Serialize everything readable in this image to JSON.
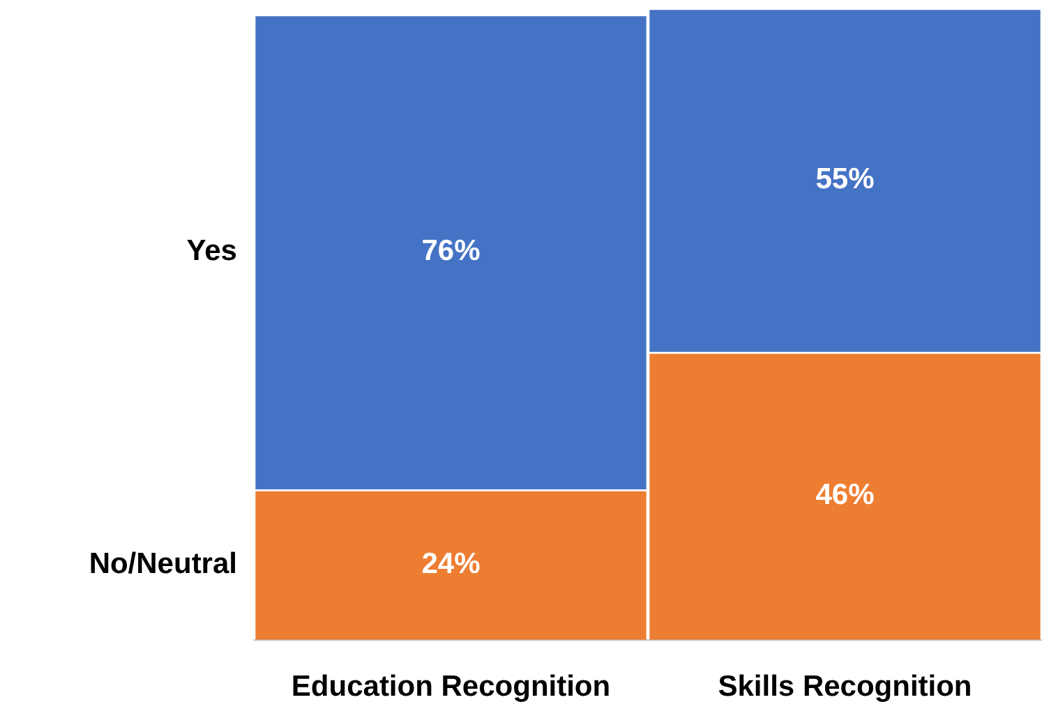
{
  "chart_data": {
    "type": "bar",
    "stacked": true,
    "grid": false,
    "legend": false,
    "categories": [
      "Education Recognition",
      "Skills Recognition"
    ],
    "series": [
      {
        "name": "No/Neutral",
        "color": "#ed7d31",
        "values": [
          24,
          46
        ],
        "value_labels": [
          "24%",
          "46%"
        ]
      },
      {
        "name": "Yes",
        "color": "#4472c4",
        "values": [
          76,
          55
        ],
        "value_labels": [
          "76%",
          "55%"
        ]
      }
    ]
  }
}
